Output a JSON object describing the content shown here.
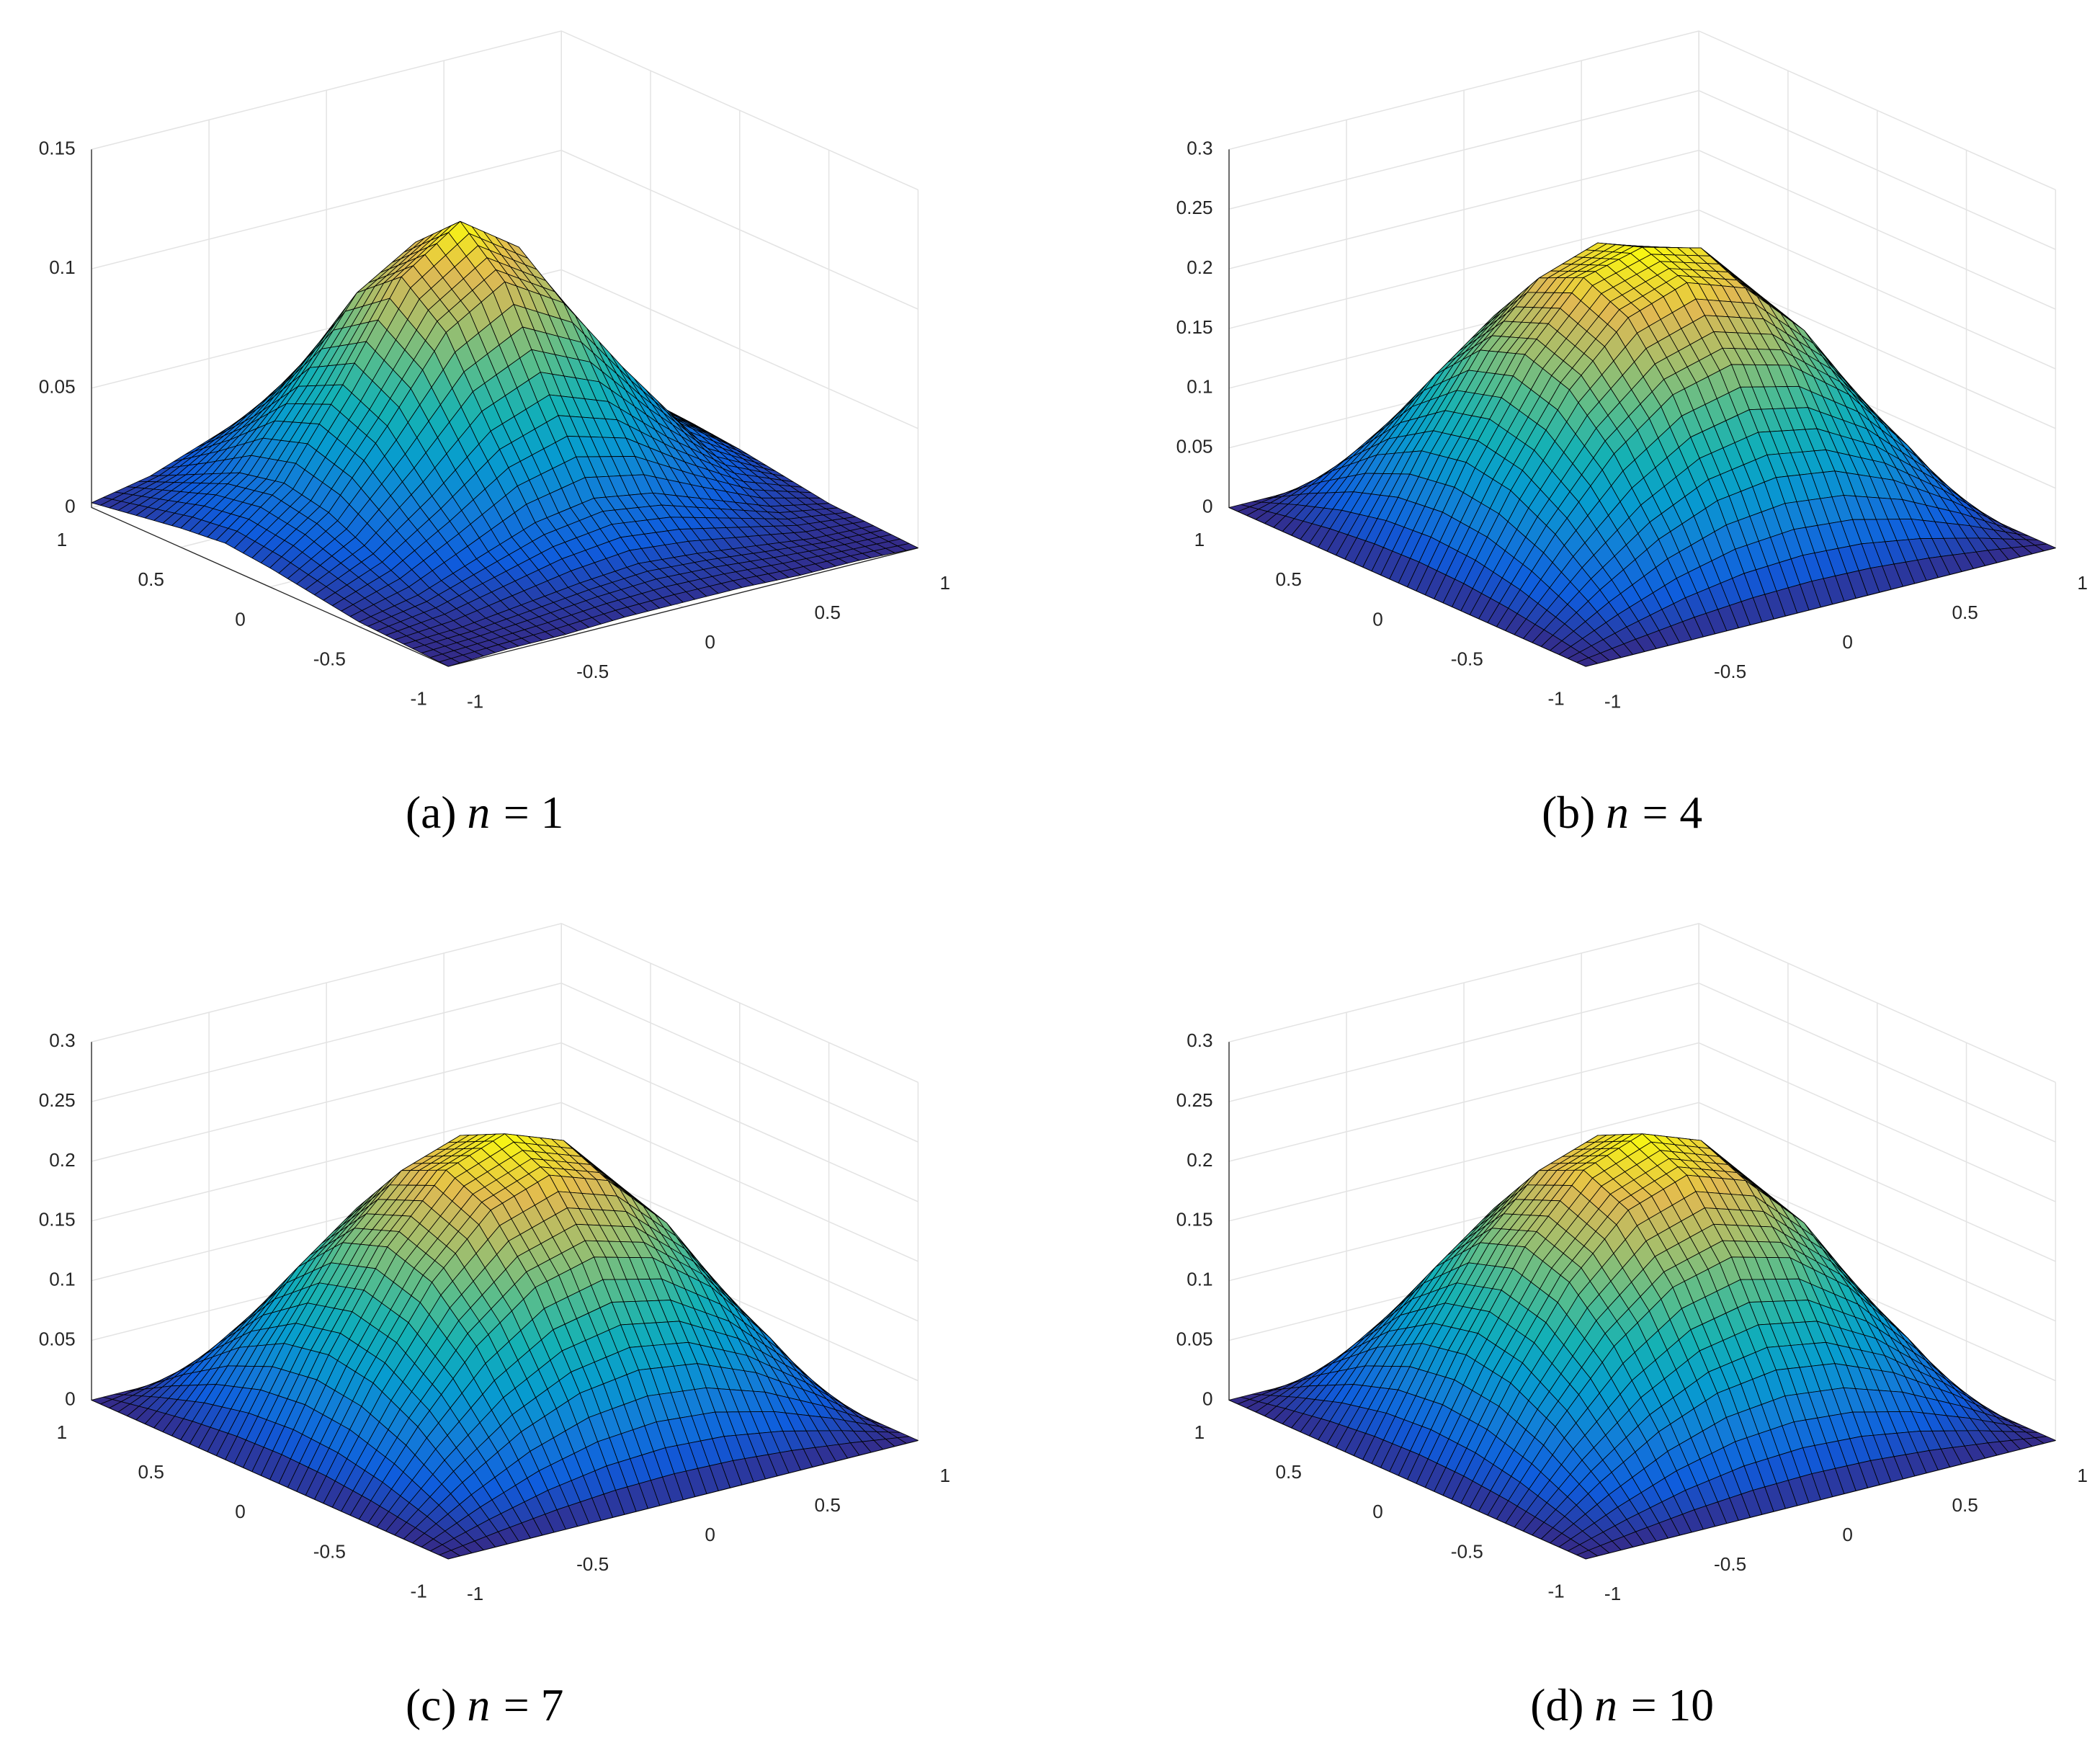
{
  "chart_data": [
    {
      "type": "surface",
      "caption_tag": "(a)",
      "caption_var": "n",
      "caption_rhs": "= 1",
      "colormap": "parula",
      "edgecolor": "#000000",
      "grid": true,
      "x": [
        -1,
        -0.75,
        -0.5,
        -0.25,
        0,
        0.25,
        0.5,
        0.75,
        1
      ],
      "y": [
        -1,
        -0.75,
        -0.5,
        -0.25,
        0,
        0.25,
        0.5,
        0.75,
        1
      ],
      "z": [
        [
          0,
          0.001,
          0.001,
          0.002,
          0.002,
          0.002,
          0.001,
          0.001,
          0
        ],
        [
          0.001,
          0.002,
          0.005,
          0.008,
          0.01,
          0.008,
          0.005,
          0.002,
          0.001
        ],
        [
          0.002,
          0.007,
          0.016,
          0.025,
          0.029,
          0.025,
          0.016,
          0.007,
          0.002
        ],
        [
          0.005,
          0.016,
          0.034,
          0.055,
          0.064,
          0.055,
          0.034,
          0.016,
          0.005
        ],
        [
          0.008,
          0.025,
          0.055,
          0.088,
          0.103,
          0.088,
          0.055,
          0.025,
          0.008
        ],
        [
          0.01,
          0.029,
          0.064,
          0.103,
          0.12,
          0.103,
          0.064,
          0.029,
          0.01
        ],
        [
          0.008,
          0.025,
          0.055,
          0.088,
          0.103,
          0.088,
          0.055,
          0.025,
          0.008
        ],
        [
          0.005,
          0.016,
          0.034,
          0.055,
          0.064,
          0.055,
          0.034,
          0.016,
          0.005
        ],
        [
          0.002,
          0.007,
          0.016,
          0.025,
          0.029,
          0.025,
          0.016,
          0.007,
          0.002
        ]
      ],
      "xlim": [
        -1,
        1
      ],
      "ylim": [
        -1,
        1
      ],
      "zlim": [
        0,
        0.15
      ],
      "xticks": [
        -1,
        -0.5,
        0,
        0.5,
        1
      ],
      "yticks": [
        -1,
        -0.5,
        0,
        0.5,
        1
      ],
      "zticks": [
        0,
        0.05,
        0.1,
        0.15
      ]
    },
    {
      "type": "surface",
      "caption_tag": "(b)",
      "caption_var": "n",
      "caption_rhs": "= 4",
      "colormap": "parula",
      "edgecolor": "#000000",
      "grid": true,
      "x": [
        -1,
        -0.75,
        -0.5,
        -0.25,
        0,
        0.25,
        0.5,
        0.75,
        1
      ],
      "y": [
        -1,
        -0.75,
        -0.5,
        -0.25,
        0,
        0.25,
        0.5,
        0.75,
        1
      ],
      "z": [
        [
          0,
          0,
          0,
          0,
          0,
          0,
          0,
          0,
          0
        ],
        [
          0,
          0.035,
          0.065,
          0.085,
          0.092,
          0.085,
          0.065,
          0.035,
          0
        ],
        [
          0,
          0.065,
          0.12,
          0.157,
          0.17,
          0.157,
          0.12,
          0.065,
          0
        ],
        [
          0,
          0.085,
          0.157,
          0.205,
          0.222,
          0.205,
          0.157,
          0.085,
          0
        ],
        [
          0,
          0.092,
          0.17,
          0.222,
          0.235,
          0.222,
          0.17,
          0.092,
          0
        ],
        [
          0,
          0.085,
          0.157,
          0.205,
          0.222,
          0.205,
          0.157,
          0.085,
          0
        ],
        [
          0,
          0.065,
          0.12,
          0.157,
          0.17,
          0.157,
          0.12,
          0.065,
          0
        ],
        [
          0,
          0.035,
          0.065,
          0.085,
          0.092,
          0.085,
          0.065,
          0.035,
          0
        ],
        [
          0,
          0,
          0,
          0,
          0,
          0,
          0,
          0,
          0
        ]
      ],
      "xlim": [
        -1,
        1
      ],
      "ylim": [
        -1,
        1
      ],
      "zlim": [
        0,
        0.3
      ],
      "xticks": [
        -1,
        -0.5,
        0,
        0.5,
        1
      ],
      "yticks": [
        -1,
        -0.5,
        0,
        0.5,
        1
      ],
      "zticks": [
        0,
        0.05,
        0.1,
        0.15,
        0.2,
        0.25,
        0.3
      ]
    },
    {
      "type": "surface",
      "caption_tag": "(c)",
      "caption_var": "n",
      "caption_rhs": "= 7",
      "colormap": "parula",
      "edgecolor": "#000000",
      "grid": true,
      "x": [
        -1,
        -0.75,
        -0.5,
        -0.25,
        0,
        0.25,
        0.5,
        0.75,
        1
      ],
      "y": [
        -1,
        -0.75,
        -0.5,
        -0.25,
        0,
        0.25,
        0.5,
        0.75,
        1
      ],
      "z": [
        [
          0,
          0,
          0,
          0,
          0,
          0,
          0,
          0,
          0
        ],
        [
          0,
          0.035,
          0.065,
          0.085,
          0.092,
          0.085,
          0.065,
          0.035,
          0
        ],
        [
          0,
          0.065,
          0.12,
          0.157,
          0.17,
          0.157,
          0.12,
          0.065,
          0
        ],
        [
          0,
          0.085,
          0.157,
          0.205,
          0.222,
          0.205,
          0.157,
          0.085,
          0
        ],
        [
          0,
          0.092,
          0.17,
          0.222,
          0.24,
          0.222,
          0.17,
          0.092,
          0
        ],
        [
          0,
          0.085,
          0.157,
          0.205,
          0.222,
          0.205,
          0.157,
          0.085,
          0
        ],
        [
          0,
          0.065,
          0.12,
          0.157,
          0.17,
          0.157,
          0.12,
          0.065,
          0
        ],
        [
          0,
          0.035,
          0.065,
          0.085,
          0.092,
          0.085,
          0.065,
          0.035,
          0
        ],
        [
          0,
          0,
          0,
          0,
          0,
          0,
          0,
          0,
          0
        ]
      ],
      "xlim": [
        -1,
        1
      ],
      "ylim": [
        -1,
        1
      ],
      "zlim": [
        0,
        0.3
      ],
      "xticks": [
        -1,
        -0.5,
        0,
        0.5,
        1
      ],
      "yticks": [
        -1,
        -0.5,
        0,
        0.5,
        1
      ],
      "zticks": [
        0,
        0.05,
        0.1,
        0.15,
        0.2,
        0.25,
        0.3
      ]
    },
    {
      "type": "surface",
      "caption_tag": "(d)",
      "caption_var": "n",
      "caption_rhs": "= 10",
      "colormap": "parula",
      "edgecolor": "#000000",
      "grid": true,
      "x": [
        -1,
        -0.75,
        -0.5,
        -0.25,
        0,
        0.25,
        0.5,
        0.75,
        1
      ],
      "y": [
        -1,
        -0.75,
        -0.5,
        -0.25,
        0,
        0.25,
        0.5,
        0.75,
        1
      ],
      "z": [
        [
          0,
          0,
          0,
          0,
          0,
          0,
          0,
          0,
          0
        ],
        [
          0,
          0.035,
          0.065,
          0.085,
          0.092,
          0.085,
          0.065,
          0.035,
          0
        ],
        [
          0,
          0.065,
          0.12,
          0.157,
          0.17,
          0.157,
          0.12,
          0.065,
          0
        ],
        [
          0,
          0.085,
          0.157,
          0.205,
          0.222,
          0.205,
          0.157,
          0.085,
          0
        ],
        [
          0,
          0.092,
          0.17,
          0.222,
          0.24,
          0.222,
          0.17,
          0.092,
          0
        ],
        [
          0,
          0.085,
          0.157,
          0.205,
          0.222,
          0.205,
          0.157,
          0.085,
          0
        ],
        [
          0,
          0.065,
          0.12,
          0.157,
          0.17,
          0.157,
          0.12,
          0.065,
          0
        ],
        [
          0,
          0.035,
          0.065,
          0.085,
          0.092,
          0.085,
          0.065,
          0.035,
          0
        ],
        [
          0,
          0,
          0,
          0,
          0,
          0,
          0,
          0,
          0
        ]
      ],
      "xlim": [
        -1,
        1
      ],
      "ylim": [
        -1,
        1
      ],
      "zlim": [
        0,
        0.3
      ],
      "xticks": [
        -1,
        -0.5,
        0,
        0.5,
        1
      ],
      "yticks": [
        -1,
        -0.5,
        0,
        0.5,
        1
      ],
      "zticks": [
        0,
        0.05,
        0.1,
        0.15,
        0.2,
        0.25,
        0.3
      ]
    }
  ]
}
